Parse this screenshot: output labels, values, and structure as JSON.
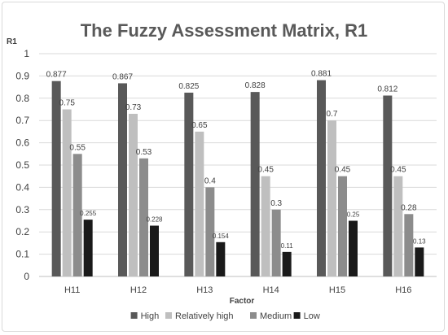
{
  "chart_data": {
    "type": "bar",
    "title": "The Fuzzy Assessment Matrix, R1",
    "ylabel": "R1",
    "xlabel": "Factor",
    "ylim": [
      0,
      1
    ],
    "yticks": [
      "0",
      "0.1",
      "0.2",
      "0.3",
      "0.4",
      "0.5",
      "0.6",
      "0.7",
      "0.8",
      "0.9",
      "1"
    ],
    "categories": [
      "H11",
      "H12",
      "H13",
      "H14",
      "H15",
      "H16"
    ],
    "series": [
      {
        "name": "High",
        "color": "#595959",
        "values": [
          0.877,
          0.867,
          0.825,
          0.828,
          0.881,
          0.812
        ],
        "labels": [
          "0.877",
          "0.867",
          "0.825",
          "0.828",
          "0.881",
          "0.812"
        ]
      },
      {
        "name": "Relatively high",
        "color": "#bfbfbf",
        "values": [
          0.75,
          0.73,
          0.65,
          0.45,
          0.7,
          0.45
        ],
        "labels": [
          "0.75",
          "0.73",
          "0.65",
          "0.45",
          "0.7",
          "0.45"
        ]
      },
      {
        "name": "Medium",
        "color": "#8c8c8c",
        "values": [
          0.55,
          0.53,
          0.4,
          0.3,
          0.45,
          0.28
        ],
        "labels": [
          "0.55",
          "0.53",
          "0.4",
          "0.3",
          "0.45",
          "0.28"
        ]
      },
      {
        "name": "Low",
        "color": "#1a1a1a",
        "values": [
          0.255,
          0.228,
          0.154,
          0.11,
          0.25,
          0.13
        ],
        "labels": [
          "0.255",
          "0.228",
          "0.154",
          "0.11",
          "0.25",
          "0.13"
        ]
      }
    ],
    "grid": true,
    "legend_position": "bottom"
  }
}
